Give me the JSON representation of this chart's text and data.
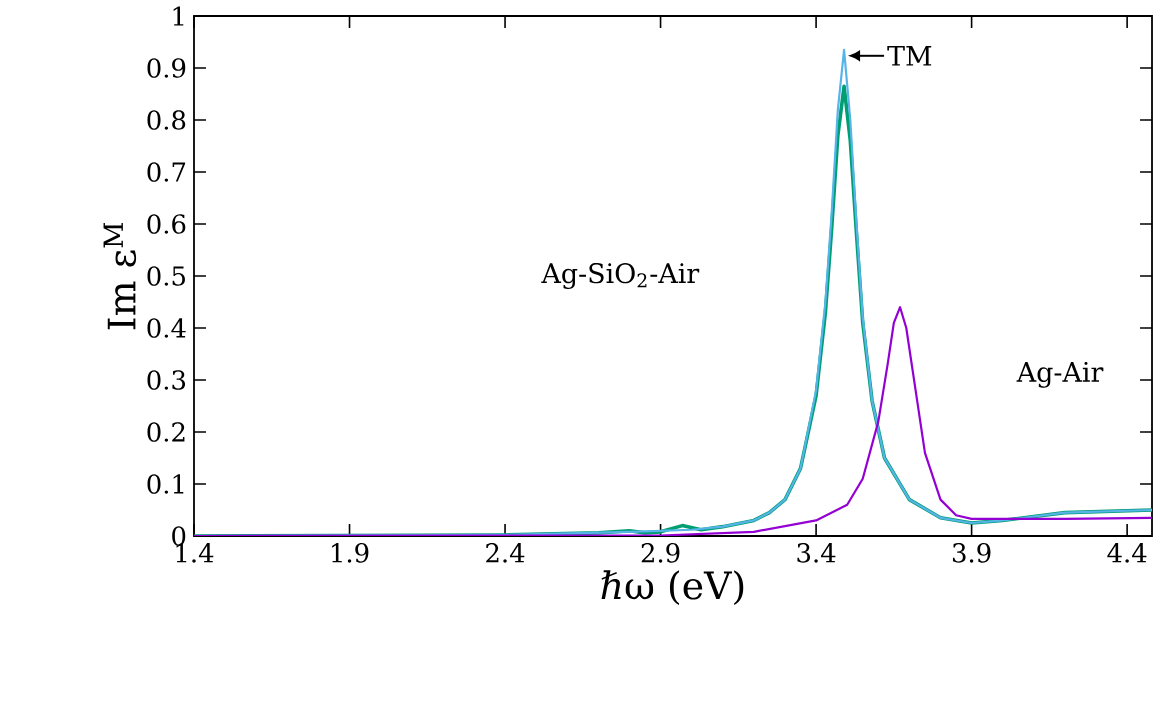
{
  "chart_data": {
    "type": "line",
    "xlabel": "ℏω (eV)",
    "ylabel": "Im ε$^{M}$",
    "xlim": [
      1.4,
      4.48
    ],
    "xticks": [
      1.4,
      1.9,
      2.4,
      2.9,
      3.4,
      3.9,
      4.4
    ],
    "ylim": [
      0,
      1
    ],
    "yticks": [
      0,
      0.1,
      0.2,
      0.3,
      0.4,
      0.5,
      0.6,
      0.7,
      0.8,
      0.9,
      1
    ],
    "grid": false,
    "marker": "none",
    "line_style": "solid",
    "series": [
      {
        "color": "#009e73",
        "x": [
          1.4,
          2.4,
          2.7,
          2.8,
          2.85,
          2.9,
          2.97,
          3.03,
          3.1,
          3.2,
          3.25,
          3.3,
          3.35,
          3.4,
          3.43,
          3.45,
          3.47,
          3.49,
          3.51,
          3.53,
          3.55,
          3.58,
          3.62,
          3.7,
          3.8,
          3.9,
          4.0,
          4.2,
          4.48
        ],
        "values": [
          0,
          0.002,
          0.006,
          0.01,
          0.006,
          0.008,
          0.02,
          0.012,
          0.018,
          0.03,
          0.045,
          0.07,
          0.13,
          0.27,
          0.43,
          0.59,
          0.77,
          0.865,
          0.76,
          0.58,
          0.41,
          0.26,
          0.15,
          0.07,
          0.035,
          0.025,
          0.03,
          0.045,
          0.05
        ]
      },
      {
        "color": "#56b4e9",
        "x": [
          1.4,
          2.4,
          2.8,
          3.0,
          3.1,
          3.2,
          3.25,
          3.3,
          3.35,
          3.4,
          3.43,
          3.45,
          3.47,
          3.49,
          3.51,
          3.53,
          3.55,
          3.58,
          3.62,
          3.7,
          3.8,
          3.9,
          4.0,
          4.2,
          4.48
        ],
        "values": [
          0,
          0.002,
          0.008,
          0.012,
          0.018,
          0.03,
          0.045,
          0.07,
          0.13,
          0.28,
          0.45,
          0.62,
          0.82,
          0.935,
          0.8,
          0.6,
          0.42,
          0.26,
          0.15,
          0.07,
          0.035,
          0.025,
          0.03,
          0.045,
          0.05
        ]
      },
      {
        "color": "#9400d3",
        "x": [
          1.4,
          2.9,
          3.2,
          3.4,
          3.5,
          3.55,
          3.6,
          3.63,
          3.65,
          3.67,
          3.69,
          3.72,
          3.75,
          3.8,
          3.85,
          3.9,
          4.2,
          4.48
        ],
        "values": [
          0,
          0.001,
          0.008,
          0.03,
          0.06,
          0.11,
          0.22,
          0.33,
          0.41,
          0.44,
          0.4,
          0.28,
          0.16,
          0.07,
          0.04,
          0.033,
          0.033,
          0.035
        ]
      }
    ],
    "annotations": [
      "Ag-SiO$_{2}$-Air",
      "Ag-Air",
      {
        "text": "TM",
        "x": 3.49,
        "y": 0.935
      }
    ]
  }
}
